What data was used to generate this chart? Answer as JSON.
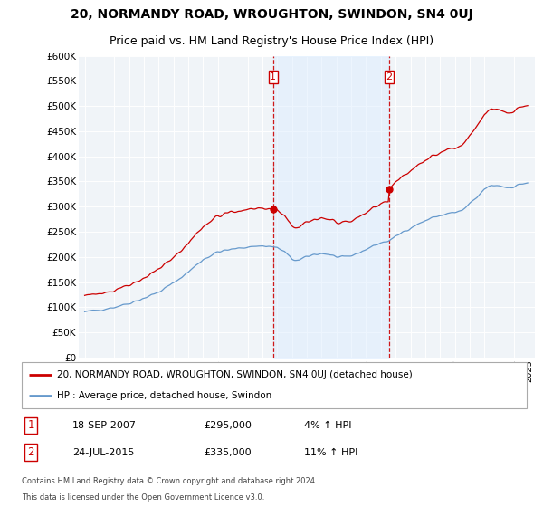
{
  "title": "20, NORMANDY ROAD, WROUGHTON, SWINDON, SN4 0UJ",
  "subtitle": "Price paid vs. HM Land Registry's House Price Index (HPI)",
  "ylim": [
    0,
    600000
  ],
  "yticks": [
    0,
    50000,
    100000,
    150000,
    200000,
    250000,
    300000,
    350000,
    400000,
    450000,
    500000,
    550000,
    600000
  ],
  "ytick_labels": [
    "£0",
    "£50K",
    "£100K",
    "£150K",
    "£200K",
    "£250K",
    "£300K",
    "£350K",
    "£400K",
    "£450K",
    "£500K",
    "£550K",
    "£600K"
  ],
  "purchase1_yr": 2007.72,
  "purchase1_price": 295000,
  "purchase2_yr": 2015.56,
  "purchase2_price": 335000,
  "line_color_price": "#cc0000",
  "line_color_hpi": "#6699cc",
  "fill_color_between": "#ddeeff",
  "vline_color": "#cc0000",
  "legend_label_price": "20, NORMANDY ROAD, WROUGHTON, SWINDON, SN4 0UJ (detached house)",
  "legend_label_hpi": "HPI: Average price, detached house, Swindon",
  "footer1": "Contains HM Land Registry data © Crown copyright and database right 2024.",
  "footer2": "This data is licensed under the Open Government Licence v3.0.",
  "background_color": "#ffffff",
  "plot_bg_color": "#f0f4f8",
  "title_fontsize": 10,
  "subtitle_fontsize": 9
}
